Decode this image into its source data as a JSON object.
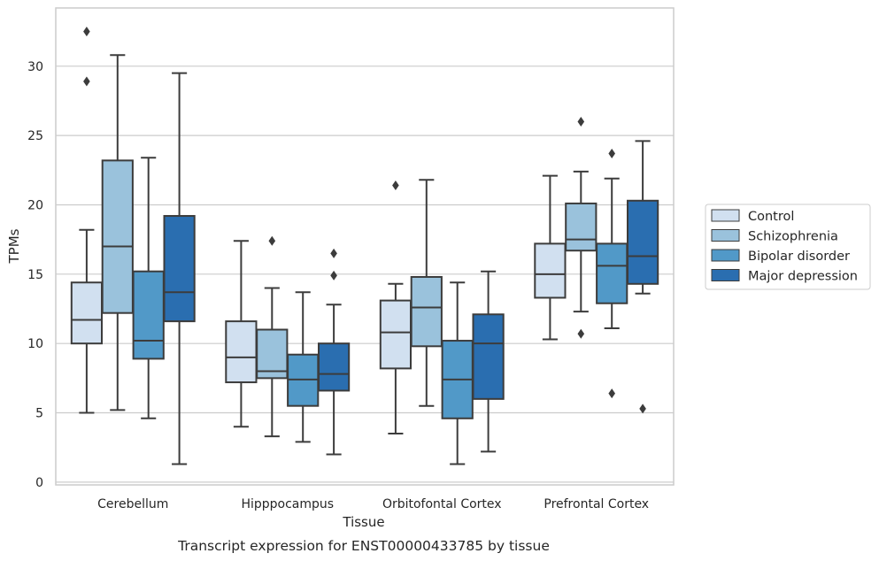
{
  "chart_data": {
    "type": "box",
    "xlabel": "Tissue",
    "ylabel": "TPMs",
    "caption": "Transcript expression for ENST00000433785 by tissue",
    "ylim": [
      -0.2,
      34.2
    ],
    "yticks": [
      0,
      5,
      10,
      15,
      20,
      25,
      30
    ],
    "grid": "horizontal",
    "legend_position": "right",
    "categories": [
      "Cerebellum",
      "Hipppocampus",
      "Orbitofontal Cortex",
      "Prefrontal Cortex"
    ],
    "series": [
      {
        "name": "Control",
        "color": "#d1e0f0",
        "boxes": [
          {
            "whisker_low": 5.0,
            "q1": 10.0,
            "median": 11.7,
            "q3": 14.4,
            "whisker_high": 18.2,
            "outliers": [
              32.5,
              28.9
            ]
          },
          {
            "whisker_low": 4.0,
            "q1": 7.2,
            "median": 9.0,
            "q3": 11.6,
            "whisker_high": 17.4,
            "outliers": []
          },
          {
            "whisker_low": 3.5,
            "q1": 8.2,
            "median": 10.8,
            "q3": 13.1,
            "whisker_high": 14.3,
            "outliers": [
              21.4
            ]
          },
          {
            "whisker_low": 10.3,
            "q1": 13.3,
            "median": 15.0,
            "q3": 17.2,
            "whisker_high": 22.1,
            "outliers": []
          }
        ]
      },
      {
        "name": "Schizophrenia",
        "color": "#9ac2dc",
        "boxes": [
          {
            "whisker_low": 5.2,
            "q1": 12.2,
            "median": 17.0,
            "q3": 23.2,
            "whisker_high": 30.8,
            "outliers": []
          },
          {
            "whisker_low": 3.3,
            "q1": 7.5,
            "median": 8.0,
            "q3": 11.0,
            "whisker_high": 14.0,
            "outliers": [
              17.4
            ]
          },
          {
            "whisker_low": 5.5,
            "q1": 9.8,
            "median": 12.6,
            "q3": 14.8,
            "whisker_high": 21.8,
            "outliers": []
          },
          {
            "whisker_low": 12.3,
            "q1": 16.7,
            "median": 17.5,
            "q3": 20.1,
            "whisker_high": 22.4,
            "outliers": [
              26.0,
              10.7
            ]
          }
        ]
      },
      {
        "name": "Bipolar disorder",
        "color": "#5199c8",
        "boxes": [
          {
            "whisker_low": 4.6,
            "q1": 8.9,
            "median": 10.2,
            "q3": 15.2,
            "whisker_high": 23.4,
            "outliers": []
          },
          {
            "whisker_low": 2.9,
            "q1": 5.5,
            "median": 7.4,
            "q3": 9.2,
            "whisker_high": 13.7,
            "outliers": []
          },
          {
            "whisker_low": 1.3,
            "q1": 4.6,
            "median": 7.4,
            "q3": 10.2,
            "whisker_high": 14.4,
            "outliers": []
          },
          {
            "whisker_low": 11.1,
            "q1": 12.9,
            "median": 15.6,
            "q3": 17.2,
            "whisker_high": 21.9,
            "outliers": [
              23.7,
              6.4
            ]
          }
        ]
      },
      {
        "name": "Major depression",
        "color": "#2a6eb0",
        "boxes": [
          {
            "whisker_low": 1.3,
            "q1": 11.6,
            "median": 13.7,
            "q3": 19.2,
            "whisker_high": 29.5,
            "outliers": []
          },
          {
            "whisker_low": 2.0,
            "q1": 6.6,
            "median": 7.8,
            "q3": 10.0,
            "whisker_high": 12.8,
            "outliers": [
              16.5,
              14.9
            ]
          },
          {
            "whisker_low": 2.2,
            "q1": 6.0,
            "median": 10.0,
            "q3": 12.1,
            "whisker_high": 15.2,
            "outliers": []
          },
          {
            "whisker_low": 13.6,
            "q1": 14.3,
            "median": 16.3,
            "q3": 20.3,
            "whisker_high": 24.6,
            "outliers": [
              5.3
            ]
          }
        ]
      }
    ]
  }
}
